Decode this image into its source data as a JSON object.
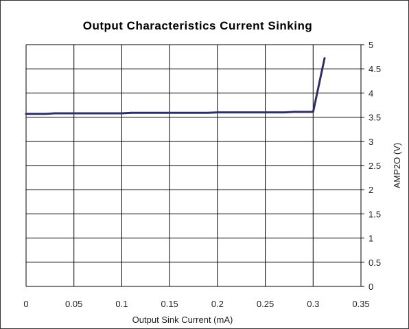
{
  "chart_data": {
    "type": "line",
    "title": "Output Characteristics Current Sinking",
    "xlabel": "Output Sink Current (mA)",
    "ylabel": "AMP2O (V)",
    "xlim": [
      0,
      0.35
    ],
    "ylim": [
      0,
      5
    ],
    "xticks": [
      "0",
      "0.05",
      "0.1",
      "0.15",
      "0.2",
      "0.25",
      "0.3",
      "0.35"
    ],
    "yticks": [
      "0",
      "0.5",
      "1",
      "1.5",
      "2",
      "2.5",
      "3",
      "3.5",
      "4",
      "4.5",
      "5"
    ],
    "yaxis_position": "right",
    "grid": true,
    "line_color": "#2e2e6b",
    "series": [
      {
        "x": [
          0,
          0.02,
          0.03,
          0.1,
          0.11,
          0.19,
          0.2,
          0.27,
          0.28,
          0.3,
          0.312
        ],
        "y": [
          3.57,
          3.57,
          3.58,
          3.58,
          3.59,
          3.59,
          3.6,
          3.6,
          3.61,
          3.61,
          4.72
        ]
      }
    ]
  }
}
